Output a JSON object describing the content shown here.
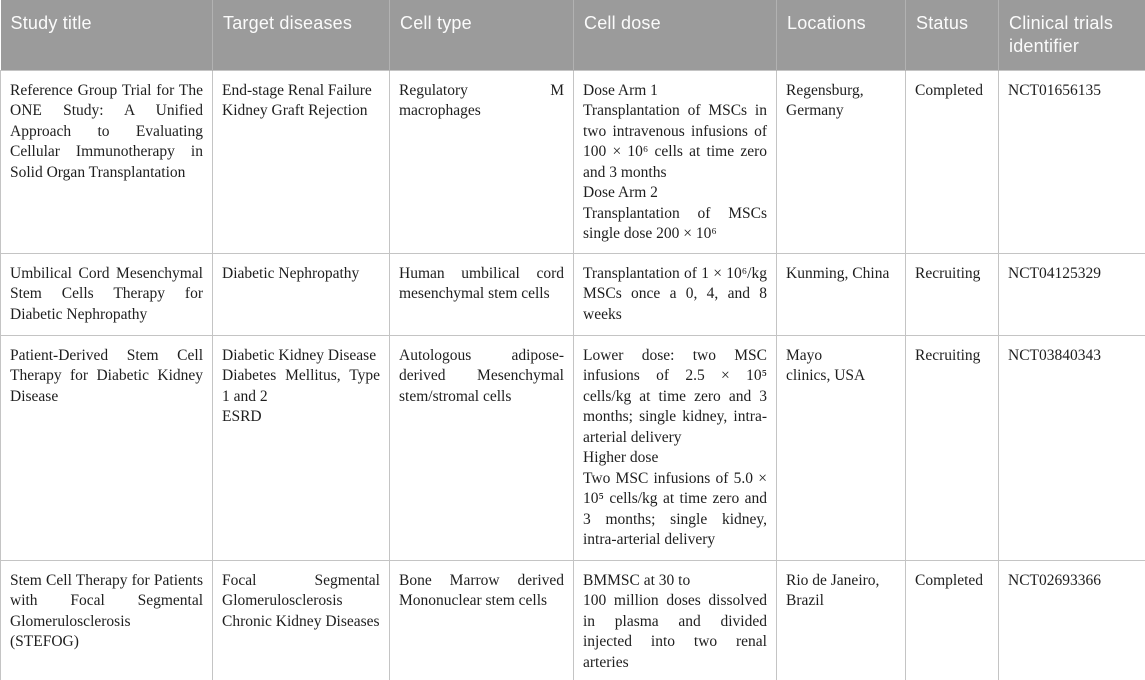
{
  "table": {
    "header": {
      "bg_color": "#9b9b9b",
      "text_color": "#fbfbfb",
      "columns": [
        "Study title",
        "Target diseases",
        "Cell type",
        "Cell dose",
        "Locations",
        "Status",
        "Clinical trials identifier"
      ]
    },
    "grid_color": "#c4c4c4",
    "rows": [
      {
        "study_title": [
          "Reference Group Trial for The ONE Study: A Unified Approach to Evaluating Cellular Immunotherapy in Solid Organ Transplantation"
        ],
        "target_diseases": [
          "End-stage Renal Failure",
          "Kidney Graft Rejection"
        ],
        "cell_type": [
          "Regulatory M macrophages"
        ],
        "cell_dose": [
          "Dose Arm 1",
          "Transplantation of MSCs in two intravenous infusions of 100 × 10⁶ cells at time zero and 3 months",
          "Dose Arm 2",
          "Transplantation of MSCs single dose 200 × 10⁶"
        ],
        "locations": [
          "Regensburg,",
          "Germany"
        ],
        "status": "Completed",
        "identifier": "NCT01656135"
      },
      {
        "study_title": [
          "Umbilical Cord Mesenchymal Stem Cells Therapy for Diabetic Nephropathy"
        ],
        "target_diseases": [
          "Diabetic Nephropathy"
        ],
        "cell_type": [
          "Human umbilical cord mesenchymal stem cells"
        ],
        "cell_dose": [
          "Transplantation of 1 × 10⁶/kg MSCs once a 0, 4, and 8 weeks"
        ],
        "locations": [
          "Kunming, China"
        ],
        "status": "Recruiting",
        "identifier": "NCT04125329"
      },
      {
        "study_title": [
          "Patient-Derived Stem Cell Therapy for Diabetic Kidney Disease"
        ],
        "target_diseases": [
          "Diabetic Kidney Disease",
          "Diabetes Mellitus, Type 1 and 2",
          "ESRD"
        ],
        "cell_type": [
          "Autologous adipose-derived Mesenchymal stem/stromal cells"
        ],
        "cell_dose": [
          "Lower dose: two MSC infusions of 2.5 × 10⁵ cells/kg at time zero and 3 months; single kidney, intra-arterial delivery",
          "Higher dose",
          "Two MSC infusions of 5.0 × 10⁵ cells/kg at time zero and 3 months; single kidney, intra-arterial delivery"
        ],
        "locations": [
          "Mayo",
          "clinics, USA"
        ],
        "status": "Recruiting",
        "identifier": "NCT03840343"
      },
      {
        "study_title": [
          "Stem Cell Therapy for Patients with Focal Segmental Glomerulosclerosis (STEFOG)"
        ],
        "target_diseases": [
          "Focal Segmental Glomerulosclerosis",
          "Chronic Kidney Diseases"
        ],
        "cell_type": [
          "Bone Marrow derived Mononuclear stem cells"
        ],
        "cell_dose": [
          "BMMSC at 30 to",
          "100 million doses dissolved in plasma and divided injected into two renal arteries"
        ],
        "locations": [
          "Rio de Janeiro,",
          "Brazil"
        ],
        "status": "Completed",
        "identifier": "NCT02693366"
      }
    ]
  }
}
